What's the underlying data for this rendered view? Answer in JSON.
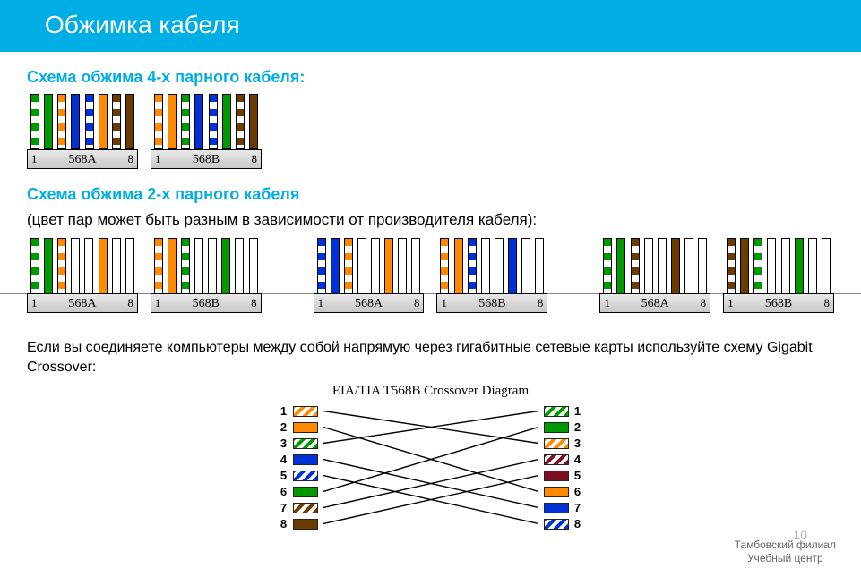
{
  "colors": {
    "accent": "#00aee6",
    "orange": "#ff8a00",
    "green": "#009a00",
    "blue": "#0030d8",
    "brown": "#6b3b00",
    "maroon": "#7a1020",
    "black": "#000000",
    "white": "#ffffff"
  },
  "header": {
    "title": "Обжимка кабеля"
  },
  "section1": {
    "title": "Схема обжима 4-х парного кабеля:",
    "connectors": [
      {
        "label": "568A",
        "wires": [
          {
            "type": "striped",
            "color": "green"
          },
          {
            "type": "solid",
            "color": "green"
          },
          {
            "type": "striped",
            "color": "orange"
          },
          {
            "type": "solid",
            "color": "blue"
          },
          {
            "type": "striped",
            "color": "blue"
          },
          {
            "type": "solid",
            "color": "orange"
          },
          {
            "type": "striped",
            "color": "brown"
          },
          {
            "type": "solid",
            "color": "brown"
          }
        ]
      },
      {
        "label": "568B",
        "wires": [
          {
            "type": "striped",
            "color": "orange"
          },
          {
            "type": "solid",
            "color": "orange"
          },
          {
            "type": "striped",
            "color": "green"
          },
          {
            "type": "solid",
            "color": "blue"
          },
          {
            "type": "striped",
            "color": "blue"
          },
          {
            "type": "solid",
            "color": "green"
          },
          {
            "type": "striped",
            "color": "brown"
          },
          {
            "type": "solid",
            "color": "brown"
          }
        ]
      }
    ]
  },
  "section2": {
    "title": "Схема обжима 2-х парного кабеля",
    "subtitle": "(цвет пар может быть разным в зависимости от производителя кабеля):",
    "connectors": [
      {
        "label": "568A",
        "gap_after": 14,
        "wires": [
          {
            "type": "striped",
            "color": "green"
          },
          {
            "type": "solid",
            "color": "green"
          },
          {
            "type": "striped",
            "color": "orange"
          },
          {
            "type": "empty"
          },
          {
            "type": "empty"
          },
          {
            "type": "solid",
            "color": "orange"
          },
          {
            "type": "empty"
          },
          {
            "type": "empty"
          }
        ]
      },
      {
        "label": "568B",
        "gap_after": 58,
        "wires": [
          {
            "type": "striped",
            "color": "orange"
          },
          {
            "type": "solid",
            "color": "orange"
          },
          {
            "type": "striped",
            "color": "green"
          },
          {
            "type": "empty"
          },
          {
            "type": "empty"
          },
          {
            "type": "solid",
            "color": "green"
          },
          {
            "type": "empty"
          },
          {
            "type": "empty"
          }
        ]
      },
      {
        "label": "568A",
        "gap_after": 14,
        "wires": [
          {
            "type": "striped",
            "color": "blue"
          },
          {
            "type": "solid",
            "color": "blue"
          },
          {
            "type": "striped",
            "color": "orange"
          },
          {
            "type": "empty"
          },
          {
            "type": "empty"
          },
          {
            "type": "solid",
            "color": "orange"
          },
          {
            "type": "empty"
          },
          {
            "type": "empty"
          }
        ]
      },
      {
        "label": "568B",
        "gap_after": 58,
        "wires": [
          {
            "type": "striped",
            "color": "orange"
          },
          {
            "type": "solid",
            "color": "orange"
          },
          {
            "type": "striped",
            "color": "blue"
          },
          {
            "type": "empty"
          },
          {
            "type": "empty"
          },
          {
            "type": "solid",
            "color": "blue"
          },
          {
            "type": "empty"
          },
          {
            "type": "empty"
          }
        ]
      },
      {
        "label": "568A",
        "gap_after": 14,
        "wires": [
          {
            "type": "striped",
            "color": "green"
          },
          {
            "type": "solid",
            "color": "green"
          },
          {
            "type": "striped",
            "color": "brown"
          },
          {
            "type": "empty"
          },
          {
            "type": "empty"
          },
          {
            "type": "solid",
            "color": "brown"
          },
          {
            "type": "empty"
          },
          {
            "type": "empty"
          }
        ]
      },
      {
        "label": "568B",
        "gap_after": 0,
        "wires": [
          {
            "type": "striped",
            "color": "brown"
          },
          {
            "type": "solid",
            "color": "brown"
          },
          {
            "type": "striped",
            "color": "green"
          },
          {
            "type": "empty"
          },
          {
            "type": "empty"
          },
          {
            "type": "solid",
            "color": "green"
          },
          {
            "type": "empty"
          },
          {
            "type": "empty"
          }
        ]
      }
    ]
  },
  "section3": {
    "paragraph": "Если вы соединяете компьютеры между собой напрямую через гигабитные сетевые карты используйте схему Gigabit Crossover:",
    "crossover": {
      "title": "EIA/TIA T568B Crossover Diagram",
      "left_pins": [
        {
          "n": 1,
          "type": "striped",
          "color": "orange"
        },
        {
          "n": 2,
          "type": "solid",
          "color": "orange"
        },
        {
          "n": 3,
          "type": "striped",
          "color": "green"
        },
        {
          "n": 4,
          "type": "solid",
          "color": "blue"
        },
        {
          "n": 5,
          "type": "striped",
          "color": "blue"
        },
        {
          "n": 6,
          "type": "solid",
          "color": "green"
        },
        {
          "n": 7,
          "type": "striped",
          "color": "brown"
        },
        {
          "n": 8,
          "type": "solid",
          "color": "brown"
        }
      ],
      "right_pins": [
        {
          "n": 1,
          "type": "striped",
          "color": "green"
        },
        {
          "n": 2,
          "type": "solid",
          "color": "green"
        },
        {
          "n": 3,
          "type": "striped",
          "color": "orange"
        },
        {
          "n": 4,
          "type": "striped",
          "color": "maroon"
        },
        {
          "n": 5,
          "type": "solid",
          "color": "maroon"
        },
        {
          "n": 6,
          "type": "solid",
          "color": "orange"
        },
        {
          "n": 7,
          "type": "solid",
          "color": "blue"
        },
        {
          "n": 8,
          "type": "striped",
          "color": "blue"
        }
      ],
      "map": [
        [
          1,
          3
        ],
        [
          2,
          6
        ],
        [
          3,
          1
        ],
        [
          4,
          7
        ],
        [
          5,
          8
        ],
        [
          6,
          2
        ],
        [
          7,
          4
        ],
        [
          8,
          5
        ]
      ]
    }
  },
  "footer": {
    "line1": "Тамбовский филиал",
    "line2": "Учебный центр",
    "page": "10"
  },
  "pin_labels": {
    "first": "1",
    "last": "8"
  }
}
